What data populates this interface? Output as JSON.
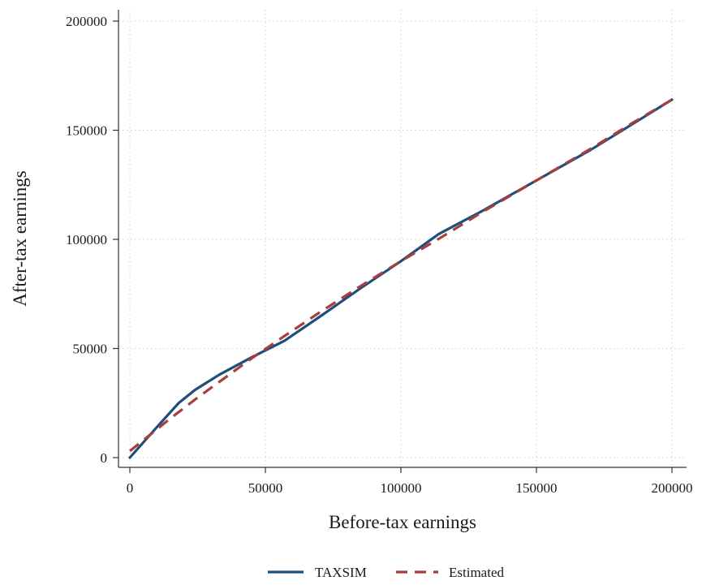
{
  "chart_data": {
    "type": "line",
    "title": "",
    "xlabel": "Before-tax earnings",
    "ylabel": "After-tax earnings",
    "xlim": [
      0,
      200000
    ],
    "ylim": [
      0,
      200000
    ],
    "x_ticks": [
      0,
      50000,
      100000,
      150000,
      200000
    ],
    "y_ticks": [
      0,
      50000,
      100000,
      150000,
      200000
    ],
    "x_tick_labels": [
      "0",
      "50000",
      "100000",
      "150000",
      "200000"
    ],
    "y_tick_labels": [
      "0",
      "50000",
      "100000",
      "150000",
      "200000"
    ],
    "grid": true,
    "legend_position": "bottom",
    "series": [
      {
        "name": "TAXSIM",
        "color": "#1f4e79",
        "style": "solid",
        "points": [
          [
            0,
            0
          ],
          [
            10000,
            14000
          ],
          [
            18000,
            25000
          ],
          [
            24000,
            31000
          ],
          [
            33000,
            38000
          ],
          [
            45000,
            46000
          ],
          [
            57000,
            53500
          ],
          [
            70000,
            64500
          ],
          [
            85000,
            77500
          ],
          [
            100000,
            90000
          ],
          [
            114000,
            102500
          ],
          [
            130000,
            113000
          ],
          [
            150000,
            127000
          ],
          [
            170000,
            141000
          ],
          [
            185000,
            152500
          ],
          [
            200000,
            164000
          ]
        ]
      },
      {
        "name": "Estimated",
        "color": "#a83e3e",
        "style": "dashed",
        "points": [
          [
            0,
            3000
          ],
          [
            15000,
            18000
          ],
          [
            25000,
            27500
          ],
          [
            35000,
            36500
          ],
          [
            45000,
            45500
          ],
          [
            55000,
            54000
          ],
          [
            70000,
            66500
          ],
          [
            85000,
            78500
          ],
          [
            100000,
            90000
          ],
          [
            115000,
            101000
          ],
          [
            130000,
            112500
          ],
          [
            150000,
            127000
          ],
          [
            170000,
            141500
          ],
          [
            185000,
            153000
          ],
          [
            200000,
            164000
          ]
        ]
      }
    ]
  }
}
